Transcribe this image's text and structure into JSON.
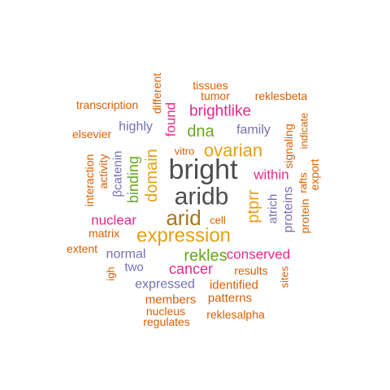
{
  "colors": {
    "dark_gray": "#4d4d4d",
    "olive": "#a6761d",
    "gold": "#e6a010",
    "orange": "#d95f02",
    "magenta": "#e7298a",
    "purple": "#7570b3",
    "green": "#66a61e"
  },
  "words": [
    {
      "text": "bright",
      "color": "dark_gray",
      "rotate": false
    },
    {
      "text": "aridb",
      "color": "dark_gray",
      "rotate": false
    },
    {
      "text": "arid",
      "color": "olive",
      "rotate": false
    },
    {
      "text": "expression",
      "color": "gold",
      "rotate": false
    },
    {
      "text": "ovarian",
      "color": "gold",
      "rotate": false
    },
    {
      "text": "ptprr",
      "color": "gold",
      "rotate": true
    },
    {
      "text": "domain",
      "color": "gold",
      "rotate": true
    },
    {
      "text": "brightlike",
      "color": "magenta",
      "rotate": false
    },
    {
      "text": "dna",
      "color": "green",
      "rotate": false
    },
    {
      "text": "binding",
      "color": "green",
      "rotate": true
    },
    {
      "text": "rekles",
      "color": "green",
      "rotate": false
    },
    {
      "text": "cancer",
      "color": "magenta",
      "rotate": false
    },
    {
      "text": "conserved",
      "color": "magenta",
      "rotate": false
    },
    {
      "text": "nuclear",
      "color": "magenta",
      "rotate": false
    },
    {
      "text": "within",
      "color": "magenta",
      "rotate": false
    },
    {
      "text": "found",
      "color": "magenta",
      "rotate": true
    },
    {
      "text": "highly",
      "color": "purple",
      "rotate": false
    },
    {
      "text": "family",
      "color": "purple",
      "rotate": false
    },
    {
      "text": "proteins",
      "color": "purple",
      "rotate": true
    },
    {
      "text": "atrich",
      "color": "purple",
      "rotate": true
    },
    {
      "text": "βcatenin",
      "color": "purple",
      "rotate": true
    },
    {
      "text": "normal",
      "color": "purple",
      "rotate": false
    },
    {
      "text": "two",
      "color": "purple",
      "rotate": false
    },
    {
      "text": "expressed",
      "color": "purple",
      "rotate": false
    },
    {
      "text": "transcription",
      "color": "orange",
      "rotate": false
    },
    {
      "text": "different",
      "color": "orange",
      "rotate": true
    },
    {
      "text": "tissues",
      "color": "orange",
      "rotate": false
    },
    {
      "text": "tumor",
      "color": "orange",
      "rotate": false
    },
    {
      "text": "reklesbeta",
      "color": "orange",
      "rotate": false
    },
    {
      "text": "elsevier",
      "color": "orange",
      "rotate": false
    },
    {
      "text": "signaling",
      "color": "orange",
      "rotate": true
    },
    {
      "text": "indicate",
      "color": "orange",
      "rotate": true
    },
    {
      "text": "vitro",
      "color": "orange",
      "rotate": false
    },
    {
      "text": "interaction",
      "color": "orange",
      "rotate": true
    },
    {
      "text": "activity",
      "color": "orange",
      "rotate": true
    },
    {
      "text": "rafts",
      "color": "orange",
      "rotate": true
    },
    {
      "text": "export",
      "color": "orange",
      "rotate": true
    },
    {
      "text": "protein",
      "color": "orange",
      "rotate": true
    },
    {
      "text": "cell",
      "color": "orange",
      "rotate": false
    },
    {
      "text": "matrix",
      "color": "orange",
      "rotate": false
    },
    {
      "text": "extent",
      "color": "orange",
      "rotate": false
    },
    {
      "text": "igh",
      "color": "orange",
      "rotate": true
    },
    {
      "text": "results",
      "color": "orange",
      "rotate": false
    },
    {
      "text": "sites",
      "color": "orange",
      "rotate": true
    },
    {
      "text": "identified",
      "color": "orange",
      "rotate": false
    },
    {
      "text": "members",
      "color": "orange",
      "rotate": false
    },
    {
      "text": "patterns",
      "color": "orange",
      "rotate": false
    },
    {
      "text": "nucleus",
      "color": "orange",
      "rotate": false
    },
    {
      "text": "reklesalpha",
      "color": "orange",
      "rotate": false
    },
    {
      "text": "regulates",
      "color": "orange",
      "rotate": false
    }
  ]
}
